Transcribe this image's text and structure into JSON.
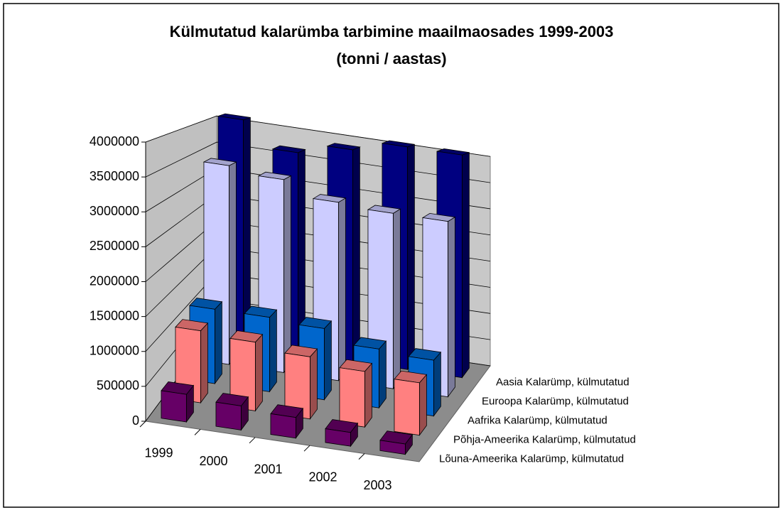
{
  "chart_data": {
    "type": "bar3d",
    "title": "Külmutatud kalarümba tarbimine maailmaosades 1999-2003",
    "subtitle": "(tonni / aastas)",
    "categories": [
      "1999",
      "2000",
      "2001",
      "2002",
      "2003"
    ],
    "series": [
      {
        "name": "Lõuna-Ameerika Kalarümp, külmutatud",
        "color": "#660066",
        "values": [
          400000,
          350000,
          300000,
          200000,
          150000
        ]
      },
      {
        "name": "Põhja-Ameerika Kalarümp, külmutatud",
        "color": "#ff8080",
        "values": [
          1100000,
          1050000,
          950000,
          850000,
          800000
        ]
      },
      {
        "name": "Aafrika Kalarümp, külmutatud",
        "color": "#0066cc",
        "values": [
          1200000,
          1200000,
          1150000,
          950000,
          900000
        ]
      },
      {
        "name": "Euroopa Kalarümp, külmutatud",
        "color": "#ccccff",
        "values": [
          3400000,
          3300000,
          3050000,
          3000000,
          3000000
        ]
      },
      {
        "name": "Aasia Kalarümp, külmutatud",
        "color": "#000080",
        "values": [
          4100000,
          3650000,
          3850000,
          4050000,
          4050000
        ]
      }
    ],
    "ylim": [
      0,
      4000000
    ],
    "yticks": [
      0,
      500000,
      1000000,
      1500000,
      2000000,
      2500000,
      3000000,
      3500000,
      4000000
    ],
    "grid": true
  }
}
